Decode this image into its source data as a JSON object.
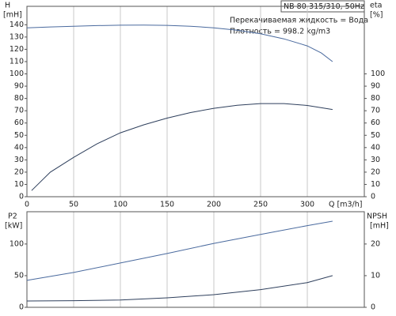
{
  "chart_data": [
    {
      "type": "line",
      "header": "NB 80-315/310, 50Hz",
      "annotations": [
        "Перекачиваемая жидкость = Вода",
        "Плотность = 998.2 kg/m3"
      ],
      "y_label": [
        "H",
        "[mH]"
      ],
      "y2_label": [
        "eta",
        "[%]"
      ],
      "x_label": "Q [m3/h]",
      "xlim": [
        0,
        361
      ],
      "xticks": [
        0,
        50,
        100,
        150,
        200,
        250,
        300
      ],
      "ylim": [
        0,
        155
      ],
      "yticks": [
        0,
        10,
        20,
        30,
        40,
        50,
        60,
        70,
        80,
        90,
        100,
        110,
        120,
        130,
        140
      ],
      "y2lim": [
        0,
        155
      ],
      "y2ticks": [
        0,
        10,
        20,
        30,
        40,
        50,
        60,
        70,
        80,
        90,
        100
      ],
      "grid": true,
      "series": [
        {
          "color": "#4a6a9e",
          "x": [
            0,
            25,
            50,
            75,
            100,
            125,
            150,
            175,
            200,
            225,
            250,
            275,
            300,
            315,
            327
          ],
          "values": [
            137.5,
            138.2,
            138.8,
            139.3,
            139.6,
            139.7,
            139.5,
            138.8,
            137.5,
            135.6,
            132.6,
            128.5,
            122.8,
            117,
            110
          ]
        },
        {
          "color": "#2e3f5c",
          "axis": "y2",
          "x": [
            5,
            25,
            50,
            75,
            100,
            125,
            150,
            175,
            200,
            225,
            250,
            275,
            300,
            327
          ],
          "values": [
            5,
            20,
            32,
            43,
            52,
            58.5,
            64,
            68.5,
            72,
            74.5,
            75.8,
            75.8,
            74.3,
            71
          ]
        }
      ]
    },
    {
      "type": "line",
      "y_label": [
        "P2",
        "[kW]"
      ],
      "y2_label": [
        "NPSH",
        "[mH]"
      ],
      "xlim": [
        0,
        361
      ],
      "ylim": [
        0,
        151
      ],
      "yticks": [
        0,
        50,
        100
      ],
      "y2lim": [
        0,
        30.2
      ],
      "y2ticks": [
        0,
        10,
        20
      ],
      "grid": true,
      "series": [
        {
          "color": "#4a6a9e",
          "x": [
            0,
            50,
            100,
            150,
            200,
            250,
            300,
            327
          ],
          "values": [
            42.5,
            55,
            70,
            85,
            101,
            115,
            129,
            136
          ]
        },
        {
          "color": "#2e3f5c",
          "axis": "y2",
          "x": [
            0,
            50,
            100,
            150,
            200,
            250,
            300,
            327
          ],
          "values": [
            2,
            2.1,
            2.3,
            3,
            4,
            5.6,
            7.8,
            10
          ]
        }
      ]
    }
  ]
}
